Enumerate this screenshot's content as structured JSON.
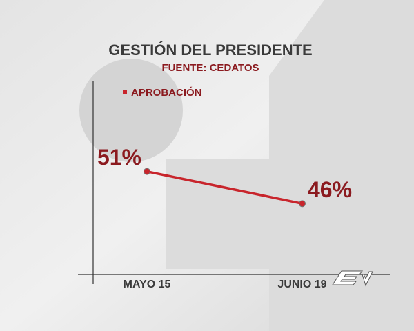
{
  "chart_data": {
    "type": "line",
    "title": "GESTIÓN DEL PRESIDENTE",
    "subtitle": "FUENTE: CEDATOS",
    "categories": [
      "MAYO 15",
      "JUNIO 19"
    ],
    "series": [
      {
        "name": "APROBACIÓN",
        "color": "#c8252c",
        "values": [
          51,
          46
        ],
        "value_labels": [
          "51%",
          "46%"
        ]
      }
    ],
    "ylim": [
      35,
      65
    ]
  }
}
